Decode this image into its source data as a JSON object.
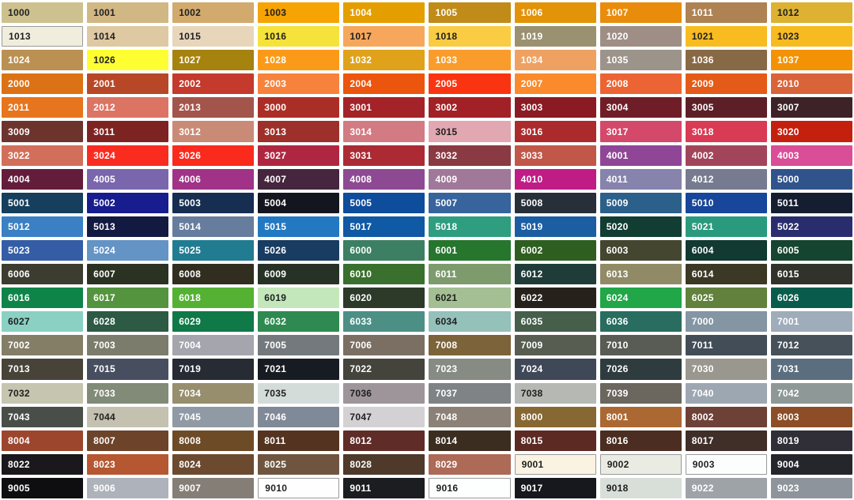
{
  "grid": {
    "columns": 10,
    "rows": 21,
    "background": "#FFFFFF",
    "label_dark_color": "#1F1F1F",
    "label_light_color": "#FFFFFF",
    "light_swatch_border_color": "#9A9A9A"
  },
  "chart_data": {
    "type": "table",
    "description": "RAL colour code swatch grid",
    "swatches": [
      {
        "code": "1000",
        "hex": "#CCC18F",
        "text": "dark"
      },
      {
        "code": "1001",
        "hex": "#D1B784",
        "text": "dark"
      },
      {
        "code": "1002",
        "hex": "#D2AA6D",
        "text": "dark"
      },
      {
        "code": "1003",
        "hex": "#F6A304",
        "text": "dark"
      },
      {
        "code": "1004",
        "hex": "#E49E00",
        "text": "light"
      },
      {
        "code": "1005",
        "hex": "#C08B18",
        "text": "light"
      },
      {
        "code": "1006",
        "hex": "#E39307",
        "text": "light"
      },
      {
        "code": "1007",
        "hex": "#EA8C0B",
        "text": "light"
      },
      {
        "code": "1011",
        "hex": "#AE8253",
        "text": "light"
      },
      {
        "code": "1012",
        "hex": "#DDB232",
        "text": "dark"
      },
      {
        "code": "1013",
        "hex": "#F0EDDD",
        "text": "dark",
        "border": true
      },
      {
        "code": "1014",
        "hex": "#DFC9A2",
        "text": "dark"
      },
      {
        "code": "1015",
        "hex": "#E8D6BB",
        "text": "dark"
      },
      {
        "code": "1016",
        "hex": "#F5E23B",
        "text": "dark"
      },
      {
        "code": "1017",
        "hex": "#F7A75B",
        "text": "dark"
      },
      {
        "code": "1018",
        "hex": "#FACC44",
        "text": "dark"
      },
      {
        "code": "1019",
        "hex": "#9A9170",
        "text": "light"
      },
      {
        "code": "1020",
        "hex": "#9E8E85",
        "text": "light"
      },
      {
        "code": "1021",
        "hex": "#F8BB20",
        "text": "dark"
      },
      {
        "code": "1023",
        "hex": "#F7BA21",
        "text": "dark"
      },
      {
        "code": "1024",
        "hex": "#BA9152",
        "text": "light"
      },
      {
        "code": "1026",
        "hex": "#FEFE33",
        "text": "dark"
      },
      {
        "code": "1027",
        "hex": "#A6830E",
        "text": "light"
      },
      {
        "code": "1028",
        "hex": "#FA9A18",
        "text": "light"
      },
      {
        "code": "1032",
        "hex": "#E0A21B",
        "text": "light"
      },
      {
        "code": "1033",
        "hex": "#F99C2B",
        "text": "light"
      },
      {
        "code": "1034",
        "hex": "#EFA162",
        "text": "light"
      },
      {
        "code": "1035",
        "hex": "#9C938A",
        "text": "light"
      },
      {
        "code": "1036",
        "hex": "#886945",
        "text": "light"
      },
      {
        "code": "1037",
        "hex": "#F29204",
        "text": "light"
      },
      {
        "code": "2000",
        "hex": "#DC7216",
        "text": "light"
      },
      {
        "code": "2001",
        "hex": "#B74726",
        "text": "light"
      },
      {
        "code": "2002",
        "hex": "#C43A2C",
        "text": "light"
      },
      {
        "code": "2003",
        "hex": "#F6823C",
        "text": "light"
      },
      {
        "code": "2004",
        "hex": "#EC550E",
        "text": "light"
      },
      {
        "code": "2005",
        "hex": "#FA3411",
        "text": "light"
      },
      {
        "code": "2007",
        "hex": "#FA8A2B",
        "text": "light"
      },
      {
        "code": "2008",
        "hex": "#EC6433",
        "text": "light"
      },
      {
        "code": "2009",
        "hex": "#E45A18",
        "text": "light"
      },
      {
        "code": "2010",
        "hex": "#D9643A",
        "text": "light"
      },
      {
        "code": "2011",
        "hex": "#E6751D",
        "text": "light"
      },
      {
        "code": "2012",
        "hex": "#DC7464",
        "text": "light"
      },
      {
        "code": "2013",
        "hex": "#A4554B",
        "text": "light"
      },
      {
        "code": "3000",
        "hex": "#AB2E26",
        "text": "light"
      },
      {
        "code": "3001",
        "hex": "#A32328",
        "text": "light"
      },
      {
        "code": "3002",
        "hex": "#A22126",
        "text": "light"
      },
      {
        "code": "3003",
        "hex": "#8A1B23",
        "text": "light"
      },
      {
        "code": "3004",
        "hex": "#6F1E28",
        "text": "light"
      },
      {
        "code": "3005",
        "hex": "#5D1F27",
        "text": "light"
      },
      {
        "code": "3007",
        "hex": "#3D2328",
        "text": "light"
      },
      {
        "code": "3009",
        "hex": "#6D342E",
        "text": "light"
      },
      {
        "code": "3011",
        "hex": "#7D2423",
        "text": "light"
      },
      {
        "code": "3012",
        "hex": "#CA8B76",
        "text": "light"
      },
      {
        "code": "3013",
        "hex": "#9D302A",
        "text": "light"
      },
      {
        "code": "3014",
        "hex": "#D27B82",
        "text": "light"
      },
      {
        "code": "3015",
        "hex": "#E1A8B2",
        "text": "dark"
      },
      {
        "code": "3016",
        "hex": "#AB2B2C",
        "text": "light"
      },
      {
        "code": "3017",
        "hex": "#D4486A",
        "text": "light"
      },
      {
        "code": "3018",
        "hex": "#D83B53",
        "text": "light"
      },
      {
        "code": "3020",
        "hex": "#C5200E",
        "text": "light"
      },
      {
        "code": "3022",
        "hex": "#D26F5B",
        "text": "light"
      },
      {
        "code": "3024",
        "hex": "#FA2B1F",
        "text": "light"
      },
      {
        "code": "3026",
        "hex": "#FA2A1D",
        "text": "light"
      },
      {
        "code": "3027",
        "hex": "#AF2640",
        "text": "light"
      },
      {
        "code": "3031",
        "hex": "#AB2A34",
        "text": "light"
      },
      {
        "code": "3032",
        "hex": "#8A3A42",
        "text": "light"
      },
      {
        "code": "3033",
        "hex": "#C05749",
        "text": "light"
      },
      {
        "code": "4001",
        "hex": "#8F4696",
        "text": "light"
      },
      {
        "code": "4002",
        "hex": "#A2455B",
        "text": "light"
      },
      {
        "code": "4003",
        "hex": "#DA4D97",
        "text": "light"
      },
      {
        "code": "4004",
        "hex": "#631D3B",
        "text": "light"
      },
      {
        "code": "4005",
        "hex": "#7A66AC",
        "text": "light"
      },
      {
        "code": "4006",
        "hex": "#A03287",
        "text": "light"
      },
      {
        "code": "4007",
        "hex": "#46253E",
        "text": "light"
      },
      {
        "code": "4008",
        "hex": "#8D4A93",
        "text": "light"
      },
      {
        "code": "4009",
        "hex": "#A0789A",
        "text": "light"
      },
      {
        "code": "4010",
        "hex": "#C01C86",
        "text": "light"
      },
      {
        "code": "4011",
        "hex": "#8683AC",
        "text": "light"
      },
      {
        "code": "4012",
        "hex": "#767B90",
        "text": "light"
      },
      {
        "code": "5000",
        "hex": "#30538C",
        "text": "light"
      },
      {
        "code": "5001",
        "hex": "#153F5C",
        "text": "light"
      },
      {
        "code": "5002",
        "hex": "#171C8E",
        "text": "light"
      },
      {
        "code": "5003",
        "hex": "#152E52",
        "text": "light"
      },
      {
        "code": "5004",
        "hex": "#14161F",
        "text": "light"
      },
      {
        "code": "5005",
        "hex": "#0E4C9C",
        "text": "light"
      },
      {
        "code": "5007",
        "hex": "#38649E",
        "text": "light"
      },
      {
        "code": "5008",
        "hex": "#273039",
        "text": "light"
      },
      {
        "code": "5009",
        "hex": "#2B608B",
        "text": "light"
      },
      {
        "code": "5010",
        "hex": "#17469A",
        "text": "light"
      },
      {
        "code": "5011",
        "hex": "#141E30",
        "text": "light"
      },
      {
        "code": "5012",
        "hex": "#3B80C4",
        "text": "light"
      },
      {
        "code": "5013",
        "hex": "#121A42",
        "text": "light"
      },
      {
        "code": "5014",
        "hex": "#667D9E",
        "text": "light"
      },
      {
        "code": "5015",
        "hex": "#2378C2",
        "text": "light"
      },
      {
        "code": "5017",
        "hex": "#1059A4",
        "text": "light"
      },
      {
        "code": "5018",
        "hex": "#2F9D80",
        "text": "light"
      },
      {
        "code": "5019",
        "hex": "#1B5EA2",
        "text": "light"
      },
      {
        "code": "5020",
        "hex": "#123D32",
        "text": "light"
      },
      {
        "code": "5021",
        "hex": "#299A7D",
        "text": "light"
      },
      {
        "code": "5022",
        "hex": "#292D6E",
        "text": "light"
      },
      {
        "code": "5023",
        "hex": "#345DA6",
        "text": "light"
      },
      {
        "code": "5024",
        "hex": "#6493C6",
        "text": "light"
      },
      {
        "code": "5025",
        "hex": "#217C92",
        "text": "light"
      },
      {
        "code": "5026",
        "hex": "#183C62",
        "text": "light"
      },
      {
        "code": "6000",
        "hex": "#3D7F63",
        "text": "light"
      },
      {
        "code": "6001",
        "hex": "#27762E",
        "text": "light"
      },
      {
        "code": "6002",
        "hex": "#2E5F20",
        "text": "light"
      },
      {
        "code": "6003",
        "hex": "#44462F",
        "text": "light"
      },
      {
        "code": "6004",
        "hex": "#123932",
        "text": "light"
      },
      {
        "code": "6005",
        "hex": "#154430",
        "text": "light"
      },
      {
        "code": "6006",
        "hex": "#3C3C30",
        "text": "light"
      },
      {
        "code": "6007",
        "hex": "#2B3221",
        "text": "light"
      },
      {
        "code": "6008",
        "hex": "#312E20",
        "text": "light"
      },
      {
        "code": "6009",
        "hex": "#263225",
        "text": "light"
      },
      {
        "code": "6010",
        "hex": "#39702E",
        "text": "light"
      },
      {
        "code": "6011",
        "hex": "#7D9B6D",
        "text": "light"
      },
      {
        "code": "6012",
        "hex": "#1F3C38",
        "text": "light"
      },
      {
        "code": "6013",
        "hex": "#908B66",
        "text": "light"
      },
      {
        "code": "6014",
        "hex": "#3B3825",
        "text": "light"
      },
      {
        "code": "6015",
        "hex": "#31322B",
        "text": "light"
      },
      {
        "code": "6016",
        "hex": "#0E8449",
        "text": "light"
      },
      {
        "code": "6017",
        "hex": "#54943E",
        "text": "light"
      },
      {
        "code": "6018",
        "hex": "#54B133",
        "text": "light"
      },
      {
        "code": "6019",
        "hex": "#C3E7BB",
        "text": "dark"
      },
      {
        "code": "6020",
        "hex": "#2D3A29",
        "text": "light"
      },
      {
        "code": "6021",
        "hex": "#A4BF93",
        "text": "dark"
      },
      {
        "code": "6022",
        "hex": "#26221B",
        "text": "light"
      },
      {
        "code": "6024",
        "hex": "#21A648",
        "text": "light"
      },
      {
        "code": "6025",
        "hex": "#61813D",
        "text": "light"
      },
      {
        "code": "6026",
        "hex": "#095C4C",
        "text": "light"
      },
      {
        "code": "6027",
        "hex": "#8AD1C3",
        "text": "dark"
      },
      {
        "code": "6028",
        "hex": "#2D5A45",
        "text": "light"
      },
      {
        "code": "6029",
        "hex": "#0F7947",
        "text": "light"
      },
      {
        "code": "6032",
        "hex": "#2E8A50",
        "text": "light"
      },
      {
        "code": "6033",
        "hex": "#4C9085",
        "text": "light"
      },
      {
        "code": "6034",
        "hex": "#94C1BA",
        "text": "dark"
      },
      {
        "code": "6035",
        "hex": "#455F4A",
        "text": "light"
      },
      {
        "code": "6036",
        "hex": "#296D60",
        "text": "light"
      },
      {
        "code": "7000",
        "hex": "#8495A4",
        "text": "light"
      },
      {
        "code": "7001",
        "hex": "#9FACBA",
        "text": "light"
      },
      {
        "code": "7002",
        "hex": "#847E67",
        "text": "light"
      },
      {
        "code": "7003",
        "hex": "#7B7C6B",
        "text": "light"
      },
      {
        "code": "7004",
        "hex": "#A4A5AD",
        "text": "light"
      },
      {
        "code": "7005",
        "hex": "#73797D",
        "text": "light"
      },
      {
        "code": "7006",
        "hex": "#7A6F62",
        "text": "light"
      },
      {
        "code": "7008",
        "hex": "#7D6339",
        "text": "light"
      },
      {
        "code": "7009",
        "hex": "#575D51",
        "text": "light"
      },
      {
        "code": "7010",
        "hex": "#585C54",
        "text": "light"
      },
      {
        "code": "7011",
        "hex": "#434D57",
        "text": "light"
      },
      {
        "code": "7012",
        "hex": "#475159",
        "text": "light"
      },
      {
        "code": "7013",
        "hex": "#474338",
        "text": "light"
      },
      {
        "code": "7015",
        "hex": "#474E60",
        "text": "light"
      },
      {
        "code": "7019",
        "hex": "#262B34",
        "text": "light"
      },
      {
        "code": "7021",
        "hex": "#171B22",
        "text": "light"
      },
      {
        "code": "7022",
        "hex": "#45443C",
        "text": "light"
      },
      {
        "code": "7023",
        "hex": "#868B84",
        "text": "light"
      },
      {
        "code": "7024",
        "hex": "#3F4857",
        "text": "light"
      },
      {
        "code": "7026",
        "hex": "#2E3C3F",
        "text": "light"
      },
      {
        "code": "7030",
        "hex": "#9A978E",
        "text": "light"
      },
      {
        "code": "7031",
        "hex": "#5B6E80",
        "text": "light"
      },
      {
        "code": "7032",
        "hex": "#C6C5AF",
        "text": "dark"
      },
      {
        "code": "7033",
        "hex": "#818B78",
        "text": "light"
      },
      {
        "code": "7034",
        "hex": "#968E6D",
        "text": "light"
      },
      {
        "code": "7035",
        "hex": "#D4DCDA",
        "text": "dark"
      },
      {
        "code": "7036",
        "hex": "#9D9599",
        "text": "dark"
      },
      {
        "code": "7037",
        "hex": "#7F8385",
        "text": "light"
      },
      {
        "code": "7038",
        "hex": "#B5B8B3",
        "text": "dark"
      },
      {
        "code": "7039",
        "hex": "#6B675F",
        "text": "light"
      },
      {
        "code": "7040",
        "hex": "#9DA7B2",
        "text": "light"
      },
      {
        "code": "7042",
        "hex": "#8E9896",
        "text": "light"
      },
      {
        "code": "7043",
        "hex": "#494E49",
        "text": "light"
      },
      {
        "code": "7044",
        "hex": "#C4C1B1",
        "text": "dark"
      },
      {
        "code": "7045",
        "hex": "#909AA4",
        "text": "light"
      },
      {
        "code": "7046",
        "hex": "#7F8997",
        "text": "light"
      },
      {
        "code": "7047",
        "hex": "#D3D1D4",
        "text": "dark"
      },
      {
        "code": "7048",
        "hex": "#8B8177",
        "text": "light"
      },
      {
        "code": "8000",
        "hex": "#876832",
        "text": "light"
      },
      {
        "code": "8001",
        "hex": "#AC6832",
        "text": "light"
      },
      {
        "code": "8002",
        "hex": "#6E4137",
        "text": "light"
      },
      {
        "code": "8003",
        "hex": "#8C4D27",
        "text": "light"
      },
      {
        "code": "8004",
        "hex": "#9D462E",
        "text": "light"
      },
      {
        "code": "8007",
        "hex": "#6D4329",
        "text": "light"
      },
      {
        "code": "8008",
        "hex": "#6E4B27",
        "text": "light"
      },
      {
        "code": "8011",
        "hex": "#543420",
        "text": "light"
      },
      {
        "code": "8012",
        "hex": "#602C27",
        "text": "light"
      },
      {
        "code": "8014",
        "hex": "#3B2E21",
        "text": "light"
      },
      {
        "code": "8015",
        "hex": "#5C2A23",
        "text": "light"
      },
      {
        "code": "8016",
        "hex": "#4B2D21",
        "text": "light"
      },
      {
        "code": "8017",
        "hex": "#402E29",
        "text": "light"
      },
      {
        "code": "8019",
        "hex": "#302E36",
        "text": "light"
      },
      {
        "code": "8022",
        "hex": "#1A181C",
        "text": "light"
      },
      {
        "code": "8023",
        "hex": "#B55731",
        "text": "light"
      },
      {
        "code": "8024",
        "hex": "#6B4A30",
        "text": "light"
      },
      {
        "code": "8025",
        "hex": "#6F553F",
        "text": "light"
      },
      {
        "code": "8028",
        "hex": "#4E392A",
        "text": "light"
      },
      {
        "code": "8029",
        "hex": "#AD6A57",
        "text": "light"
      },
      {
        "code": "9001",
        "hex": "#FAF3E2",
        "text": "dark",
        "border": true
      },
      {
        "code": "9002",
        "hex": "#EAEBE3",
        "text": "dark",
        "border": true
      },
      {
        "code": "9003",
        "hex": "#FCFDFD",
        "text": "dark",
        "border": true
      },
      {
        "code": "9004",
        "hex": "#25262B",
        "text": "light"
      },
      {
        "code": "9005",
        "hex": "#0E0E11",
        "text": "light"
      },
      {
        "code": "9006",
        "hex": "#AEB2BA",
        "text": "light"
      },
      {
        "code": "9007",
        "hex": "#847E76",
        "text": "light"
      },
      {
        "code": "9010",
        "hex": "#FEFEFE",
        "text": "dark",
        "border": true
      },
      {
        "code": "9011",
        "hex": "#1B1D20",
        "text": "light"
      },
      {
        "code": "9016",
        "hex": "#FDFFFF",
        "text": "dark",
        "border": true
      },
      {
        "code": "9017",
        "hex": "#16181D",
        "text": "light"
      },
      {
        "code": "9018",
        "hex": "#D8DFD9",
        "text": "dark"
      },
      {
        "code": "9022",
        "hex": "#9EA3A8",
        "text": "light"
      },
      {
        "code": "9023",
        "hex": "#8E949B",
        "text": "light"
      }
    ]
  }
}
